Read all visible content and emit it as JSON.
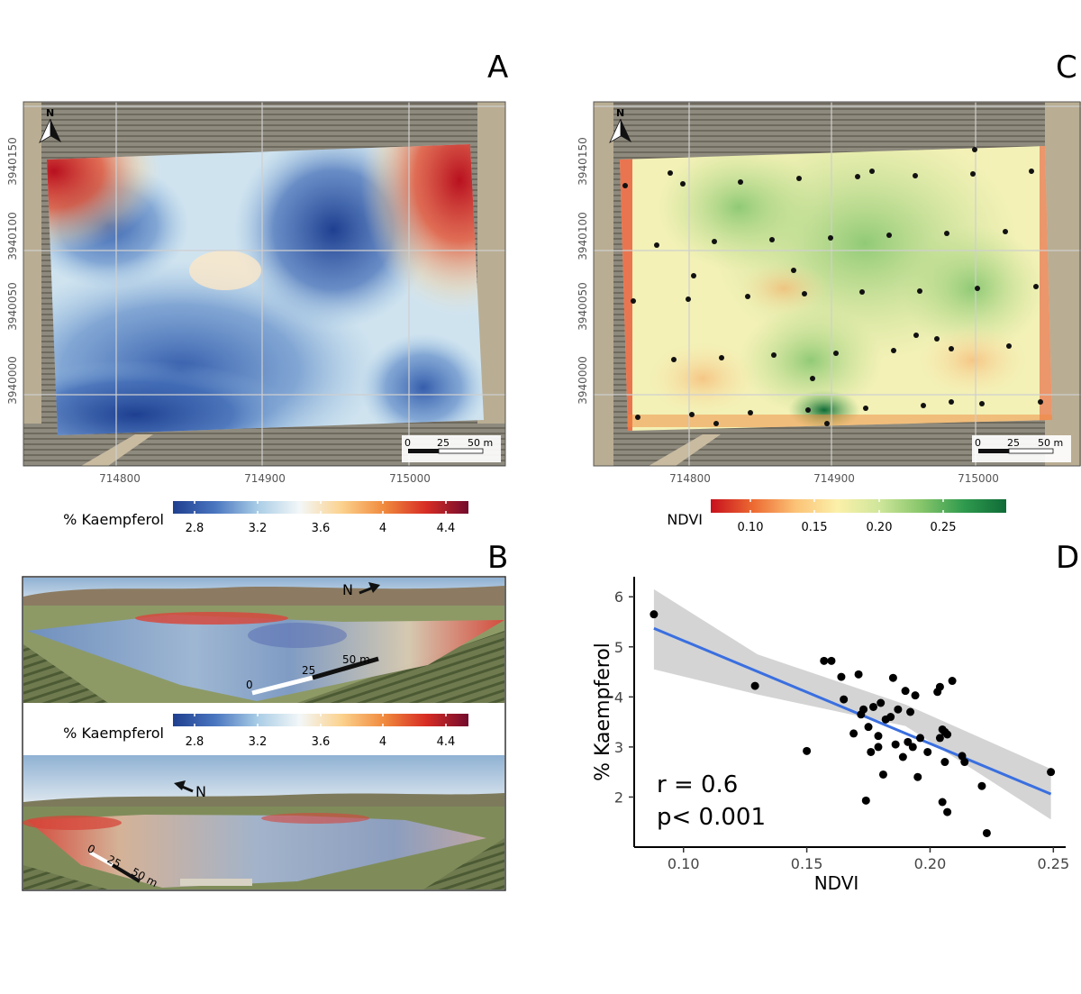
{
  "panels": {
    "A": {
      "letter": "A",
      "x_ticks": [
        "714800",
        "714900",
        "715000"
      ],
      "y_ticks": [
        "3940000",
        "3940050",
        "3940100",
        "3940150"
      ],
      "north": "N",
      "scalebar": [
        "0",
        "25",
        "50 m"
      ]
    },
    "B": {
      "letter": "B",
      "view1": {
        "north": "N",
        "scalebar": [
          "0",
          "25",
          "50 m"
        ]
      },
      "view2": {
        "north": "N",
        "scalebar": [
          "0",
          "25",
          "50 m"
        ]
      }
    },
    "C": {
      "letter": "C",
      "x_ticks": [
        "714800",
        "714900",
        "715000"
      ],
      "y_ticks": [
        "3940000",
        "3940050",
        "3940100",
        "3940150"
      ],
      "north": "N",
      "scalebar": [
        "0",
        "25",
        "50 m"
      ]
    },
    "D": {
      "letter": "D",
      "annotation_r": "r = 0.6",
      "annotation_p": "p< 0.001"
    }
  },
  "legends": {
    "kaempferol": {
      "title": "% Kaempferol",
      "ticks": [
        "2.8",
        "3.2",
        "3.6",
        "4",
        "4.4"
      ],
      "colors": [
        "#1f3f8f",
        "#4a76c0",
        "#a9cde6",
        "#f3f7f8",
        "#fbd28d",
        "#f08a3e",
        "#d72d24",
        "#730b2d"
      ]
    },
    "ndvi": {
      "title": "NDVI",
      "ticks": [
        "0.10",
        "0.15",
        "0.20",
        "0.25"
      ],
      "colors": [
        "#c8101d",
        "#ec6a32",
        "#fbc276",
        "#fbf0aa",
        "#cfe69a",
        "#86c56a",
        "#2f9a4e",
        "#0f6b37"
      ]
    }
  },
  "chart_data": {
    "type": "scatter",
    "xlabel": "NDVI",
    "ylabel": "% Kaempferol",
    "xlim": [
      0.08,
      0.255
    ],
    "ylim": [
      1.0,
      6.4
    ],
    "x_ticks": [
      0.1,
      0.15,
      0.2,
      0.25
    ],
    "x_tick_labels": [
      "0.10",
      "0.15",
      "0.20",
      "0.25"
    ],
    "y_ticks": [
      2,
      3,
      4,
      5,
      6
    ],
    "y_tick_labels": [
      "2",
      "3",
      "4",
      "5",
      "6"
    ],
    "grid": false,
    "points": [
      [
        0.088,
        5.65
      ],
      [
        0.129,
        4.22
      ],
      [
        0.15,
        2.92
      ],
      [
        0.157,
        4.72
      ],
      [
        0.16,
        4.72
      ],
      [
        0.164,
        4.4
      ],
      [
        0.165,
        3.95
      ],
      [
        0.169,
        3.27
      ],
      [
        0.171,
        4.45
      ],
      [
        0.172,
        3.65
      ],
      [
        0.173,
        3.75
      ],
      [
        0.174,
        1.93
      ],
      [
        0.175,
        3.4
      ],
      [
        0.176,
        2.9
      ],
      [
        0.177,
        3.8
      ],
      [
        0.179,
        3.0
      ],
      [
        0.179,
        3.22
      ],
      [
        0.18,
        3.88
      ],
      [
        0.181,
        2.45
      ],
      [
        0.182,
        3.55
      ],
      [
        0.184,
        3.6
      ],
      [
        0.185,
        4.38
      ],
      [
        0.186,
        3.05
      ],
      [
        0.187,
        3.75
      ],
      [
        0.189,
        2.8
      ],
      [
        0.19,
        4.12
      ],
      [
        0.191,
        3.1
      ],
      [
        0.192,
        3.7
      ],
      [
        0.193,
        3.0
      ],
      [
        0.194,
        4.03
      ],
      [
        0.195,
        2.4
      ],
      [
        0.196,
        3.18
      ],
      [
        0.199,
        2.9
      ],
      [
        0.203,
        4.1
      ],
      [
        0.204,
        4.2
      ],
      [
        0.204,
        3.18
      ],
      [
        0.205,
        1.9
      ],
      [
        0.205,
        3.35
      ],
      [
        0.206,
        2.7
      ],
      [
        0.206,
        3.3
      ],
      [
        0.207,
        3.25
      ],
      [
        0.207,
        1.7
      ],
      [
        0.209,
        4.32
      ],
      [
        0.213,
        2.82
      ],
      [
        0.214,
        2.7
      ],
      [
        0.221,
        2.22
      ],
      [
        0.223,
        1.28
      ],
      [
        0.249,
        2.5
      ]
    ],
    "fit": {
      "x": [
        0.088,
        0.249
      ],
      "y": [
        5.37,
        2.06
      ],
      "color": "#3a6fe0"
    },
    "ci_band": {
      "x": [
        0.088,
        0.13,
        0.19,
        0.249
      ],
      "lower": [
        4.55,
        4.05,
        3.42,
        1.55
      ],
      "upper": [
        6.15,
        4.85,
        3.85,
        2.56
      ],
      "color": "#cccccc"
    }
  }
}
